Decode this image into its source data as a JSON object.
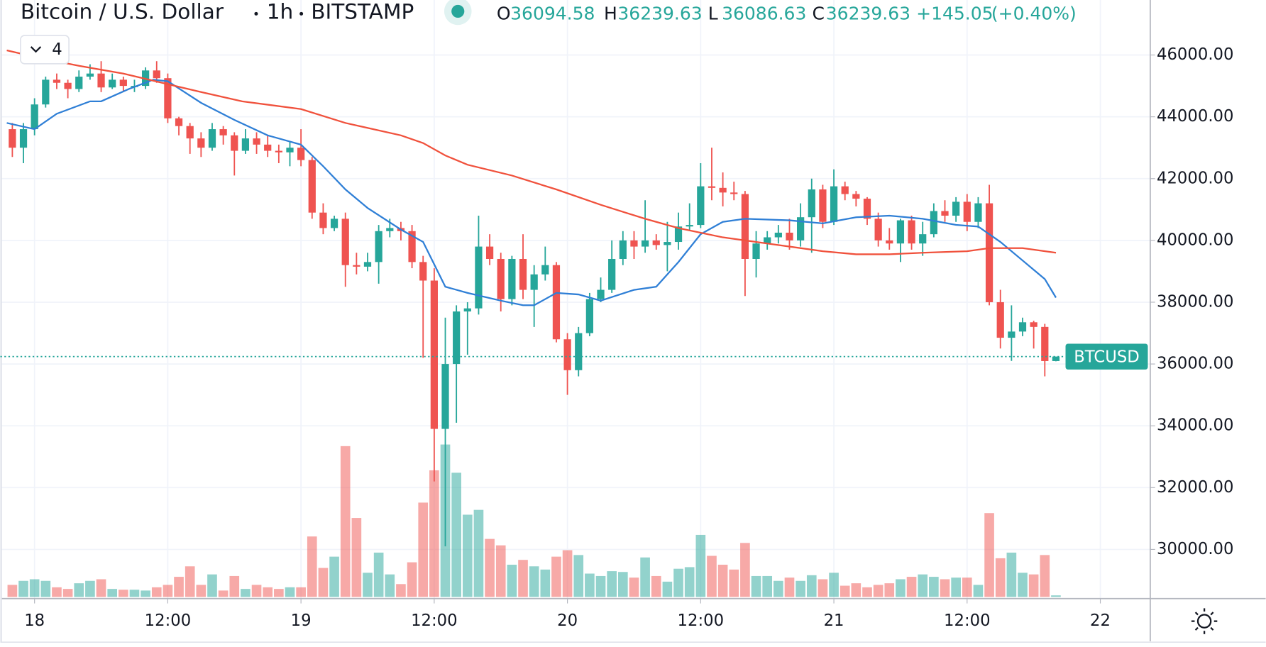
{
  "chart_data": {
    "type": "candlestick",
    "title": "Bitcoin / U.S. Dollar",
    "interval": "1h",
    "exchange": "BITSTAMP",
    "indicator_count": "4",
    "header": {
      "labels": [
        "O",
        "H",
        "L",
        "C"
      ],
      "values": [
        36094.58,
        36239.63,
        36086.63,
        36239.63
      ],
      "change": {
        "value": 145.05,
        "label": "+145.05"
      },
      "change_percent": {
        "value": 0.4,
        "label": "(+0.40%)"
      }
    },
    "last_price_label": "BTCUSD",
    "up_color": "#26a69a",
    "down_color": "#ef5350",
    "grid": true,
    "xlim": [
      -2.5,
      100.5
    ],
    "xticks": [
      {
        "value": 0,
        "label": "18"
      },
      {
        "value": 12,
        "label": "12:00"
      },
      {
        "value": 24,
        "label": "19"
      },
      {
        "value": 36,
        "label": "12:00"
      },
      {
        "value": 48,
        "label": "20"
      },
      {
        "value": 60,
        "label": "12:00"
      },
      {
        "value": 72,
        "label": "21"
      },
      {
        "value": 84,
        "label": "12:00"
      },
      {
        "value": 96,
        "label": "22"
      }
    ],
    "ylim": [
      28460,
      47780
    ],
    "yticks": [
      {
        "value": 30000,
        "label": "30000.00"
      },
      {
        "value": 32000,
        "label": "32000.00"
      },
      {
        "value": 34000,
        "label": "34000.00"
      },
      {
        "value": 36000,
        "label": "36000.00"
      },
      {
        "value": 38000,
        "label": "38000.00"
      },
      {
        "value": 40000,
        "label": "40000.00"
      },
      {
        "value": 42000,
        "label": "42000.00"
      },
      {
        "value": 44000,
        "label": "44000.00"
      },
      {
        "value": 46000,
        "label": "46000.00"
      }
    ],
    "x": [
      -2,
      -1,
      0,
      1,
      2,
      3,
      4,
      5,
      6,
      7,
      8,
      9,
      10,
      11,
      12,
      13,
      14,
      15,
      16,
      17,
      18,
      19,
      20,
      21,
      22,
      23,
      24,
      25,
      26,
      27,
      28,
      29,
      30,
      31,
      32,
      33,
      34,
      35,
      36,
      37,
      38,
      39,
      40,
      41,
      42,
      43,
      44,
      45,
      46,
      47,
      48,
      49,
      50,
      51,
      52,
      53,
      54,
      55,
      56,
      57,
      58,
      59,
      60,
      61,
      62,
      63,
      64,
      65,
      66,
      67,
      68,
      69,
      70,
      71,
      72,
      73,
      74,
      75,
      76,
      77,
      78,
      79,
      80,
      81,
      82,
      83,
      84,
      85,
      86,
      87,
      88,
      89,
      90,
      91,
      92
    ],
    "open": [
      43600,
      43000,
      43600,
      44400,
      45200,
      45100,
      44900,
      45300,
      45400,
      44950,
      45200,
      45000,
      45000,
      45500,
      45250,
      43950,
      43700,
      43300,
      43000,
      43600,
      43400,
      42900,
      43300,
      43100,
      42900,
      42850,
      43000,
      42600,
      40900,
      40400,
      40700,
      39200,
      39150,
      39300,
      40300,
      40400,
      40300,
      39300,
      38700,
      33900,
      36000,
      37700,
      37800,
      39800,
      39400,
      38100,
      39400,
      38400,
      38900,
      39200,
      36800,
      35800,
      37000,
      38100,
      38400,
      39400,
      40000,
      39800,
      40000,
      39850,
      39950,
      40450,
      40500,
      41750,
      41700,
      41550,
      41500,
      39400,
      39900,
      40100,
      40250,
      40000,
      40750,
      41650,
      40600,
      41750,
      41500,
      41350,
      40700,
      40000,
      39900,
      40650,
      39900,
      40200,
      40950,
      40800,
      41250,
      40600,
      41200,
      38000,
      36850,
      37050,
      37350,
      37200,
      36094.58
    ],
    "high": [
      43800,
      43800,
      44600,
      45300,
      45400,
      45200,
      45500,
      45700,
      45800,
      45400,
      45300,
      45200,
      45600,
      45800,
      45400,
      44000,
      43800,
      43500,
      43800,
      43700,
      43500,
      43600,
      43500,
      43400,
      43100,
      43200,
      43600,
      42700,
      41200,
      40800,
      40900,
      39600,
      39600,
      40500,
      40700,
      40600,
      40500,
      39500,
      39100,
      37500,
      37900,
      38000,
      40800,
      40200,
      39600,
      39500,
      40200,
      39200,
      39800,
      39300,
      37000,
      37200,
      38300,
      38800,
      40000,
      40300,
      40300,
      41300,
      40200,
      40600,
      40900,
      41200,
      42500,
      43000,
      42200,
      41900,
      41600,
      40300,
      40300,
      40500,
      40700,
      41200,
      42000,
      41800,
      42300,
      41900,
      41600,
      41400,
      40900,
      40400,
      40700,
      40800,
      40600,
      41200,
      41300,
      41400,
      41500,
      41400,
      41800,
      38400,
      37900,
      37500,
      37400,
      37300,
      36239.63
    ],
    "low": [
      42700,
      42500,
      43400,
      44300,
      44900,
      44600,
      44800,
      45200,
      44800,
      44900,
      44800,
      44800,
      44900,
      45100,
      43800,
      43400,
      42800,
      42700,
      42900,
      43100,
      42100,
      42800,
      42800,
      42700,
      42500,
      42400,
      42400,
      40700,
      40200,
      40300,
      38500,
      38900,
      39000,
      38600,
      40100,
      40000,
      39100,
      36200,
      32200,
      30100,
      34100,
      36300,
      37600,
      39200,
      37700,
      37900,
      38100,
      37200,
      38700,
      36700,
      35000,
      35600,
      36900,
      38000,
      38300,
      39200,
      39400,
      39600,
      39700,
      39000,
      39700,
      40300,
      40400,
      41300,
      41100,
      41300,
      38200,
      38800,
      39700,
      39900,
      39700,
      39800,
      39600,
      40400,
      40500,
      41300,
      41100,
      40500,
      39800,
      39700,
      39300,
      39700,
      39500,
      40100,
      40600,
      40600,
      40300,
      40400,
      37900,
      36500,
      36100,
      36900,
      36500,
      35600,
      36086.63
    ],
    "close": [
      43000,
      43600,
      44400,
      45200,
      45100,
      44900,
      45300,
      45400,
      44950,
      45200,
      45000,
      45000,
      45500,
      45250,
      43950,
      43700,
      43300,
      43000,
      43600,
      43400,
      42900,
      43300,
      43100,
      42900,
      42850,
      43000,
      42600,
      40900,
      40400,
      40700,
      39200,
      39150,
      39300,
      40300,
      40400,
      40300,
      39300,
      38700,
      33900,
      36000,
      37700,
      37800,
      39800,
      39400,
      38100,
      39400,
      38400,
      38900,
      39200,
      36800,
      35800,
      37000,
      38100,
      38400,
      39400,
      40000,
      39800,
      40000,
      39850,
      39950,
      40450,
      40500,
      41750,
      41700,
      41550,
      41500,
      39400,
      39900,
      40100,
      40250,
      40000,
      40750,
      41650,
      40600,
      41750,
      41500,
      41350,
      40700,
      40000,
      39900,
      40650,
      39900,
      40200,
      40950,
      40800,
      41250,
      40600,
      41200,
      38000,
      36850,
      37050,
      37350,
      37200,
      36094.58,
      36239.63
    ],
    "volume": [
      15,
      20,
      22,
      20,
      12,
      10,
      17,
      20,
      22,
      10,
      9,
      9,
      8,
      12,
      15,
      25,
      38,
      15,
      28,
      8,
      26,
      10,
      15,
      12,
      10,
      12,
      12,
      75,
      36,
      50,
      187,
      98,
      30,
      55,
      28,
      16,
      43,
      117,
      157,
      189,
      154,
      102,
      108,
      72,
      64,
      40,
      46,
      38,
      34,
      50,
      58,
      52,
      29,
      26,
      32,
      31,
      24,
      49,
      26,
      19,
      35,
      37,
      77,
      51,
      40,
      34,
      67,
      26,
      26,
      20,
      24,
      20,
      27,
      22,
      30,
      14,
      17,
      12,
      15,
      17,
      22,
      25,
      28,
      25,
      22,
      24,
      24,
      15,
      104,
      48,
      55,
      30,
      28,
      52,
      2
    ],
    "volume_lim": [
      0,
      200
    ],
    "moving_averages": [
      {
        "color": "#2f7fd6",
        "x": [
          -2.5,
          0,
          2,
          5,
          6,
          8.5,
          10.7,
          12,
          15,
          18,
          21,
          24,
          26,
          28,
          30,
          33,
          35,
          37,
          39,
          42,
          44,
          45,
          47,
          49,
          51,
          54,
          56,
          58,
          60,
          62,
          64,
          68,
          71,
          74,
          77,
          80,
          83,
          85,
          87,
          89,
          91,
          92
        ],
        "values": [
          43800,
          43600,
          44100,
          44500,
          44500,
          44900,
          45200,
          45150,
          44450,
          43900,
          43400,
          43100,
          42400,
          41650,
          41050,
          40350,
          39950,
          38500,
          38300,
          38050,
          37900,
          37900,
          38300,
          38250,
          38050,
          38400,
          38500,
          39300,
          40200,
          40600,
          40700,
          40650,
          40550,
          40750,
          40800,
          40700,
          40500,
          40450,
          39950,
          39350,
          38750,
          38150
        ]
      },
      {
        "color": "#f0513c",
        "x": [
          -2.5,
          0.5,
          4,
          8,
          11.5,
          15,
          18.7,
          24,
          28,
          33,
          35,
          37,
          39,
          43,
          47,
          51,
          55,
          58,
          62,
          66,
          71,
          74,
          77,
          80,
          84,
          86,
          89,
          92
        ],
        "values": [
          46150,
          45900,
          45650,
          45400,
          45100,
          44800,
          44500,
          44250,
          43800,
          43400,
          43150,
          42750,
          42450,
          42100,
          41650,
          41150,
          40700,
          40400,
          40100,
          39900,
          39650,
          39550,
          39550,
          39600,
          39650,
          39750,
          39750,
          39600
        ]
      }
    ]
  }
}
